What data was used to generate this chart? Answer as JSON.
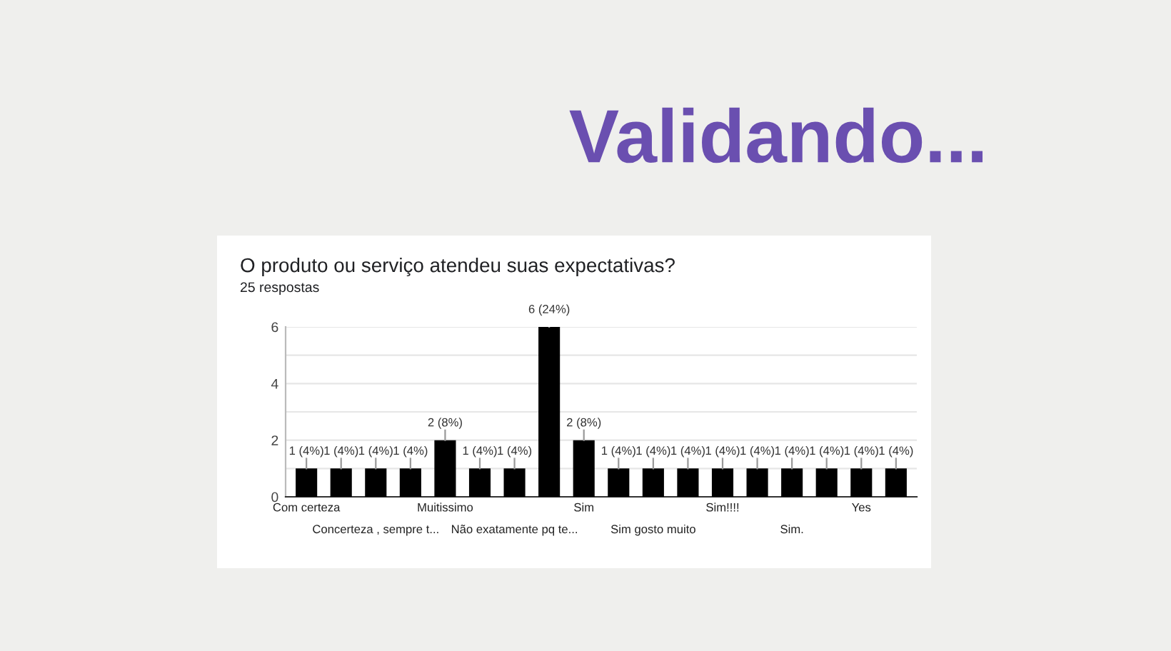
{
  "chart_data": {
    "type": "bar",
    "title": "O produto ou serviço atendeu suas expectativas?",
    "subtitle": "25 respostas",
    "annotations": [
      "Validando..."
    ],
    "categories": [
      "Com certeza",
      null,
      "Concerteza , sempre t...",
      null,
      "Muitissimo",
      null,
      "Não exatamente pq te...",
      null,
      "Sim",
      null,
      "Sim gosto muito",
      null,
      "Sim!!!!",
      null,
      "Sim.",
      null,
      "Yes",
      null
    ],
    "values": [
      1,
      1,
      1,
      1,
      2,
      1,
      1,
      6,
      2,
      1,
      1,
      1,
      1,
      1,
      1,
      1,
      1,
      1
    ],
    "value_labels": [
      "1 (4%)",
      "1 (4%)",
      "1 (4%)",
      "1 (4%)",
      "2 (8%)",
      "1 (4%)",
      "1 (4%)",
      "6 (24%)",
      "2 (8%)",
      "1 (4%)",
      "1 (4%)",
      "1 (4%)",
      "1 (4%)",
      "1 (4%)",
      "1 (4%)",
      "1 (4%)",
      "1 (4%)",
      "1 (4%)"
    ],
    "color": "#000000",
    "ylim": [
      0,
      6
    ],
    "yticks": [
      0,
      {
        "value": 1,
        "label": null
      },
      2,
      {
        "value": 3,
        "label": null
      },
      4,
      {
        "value": 5,
        "label": null
      },
      6
    ],
    "grid": "y"
  }
}
